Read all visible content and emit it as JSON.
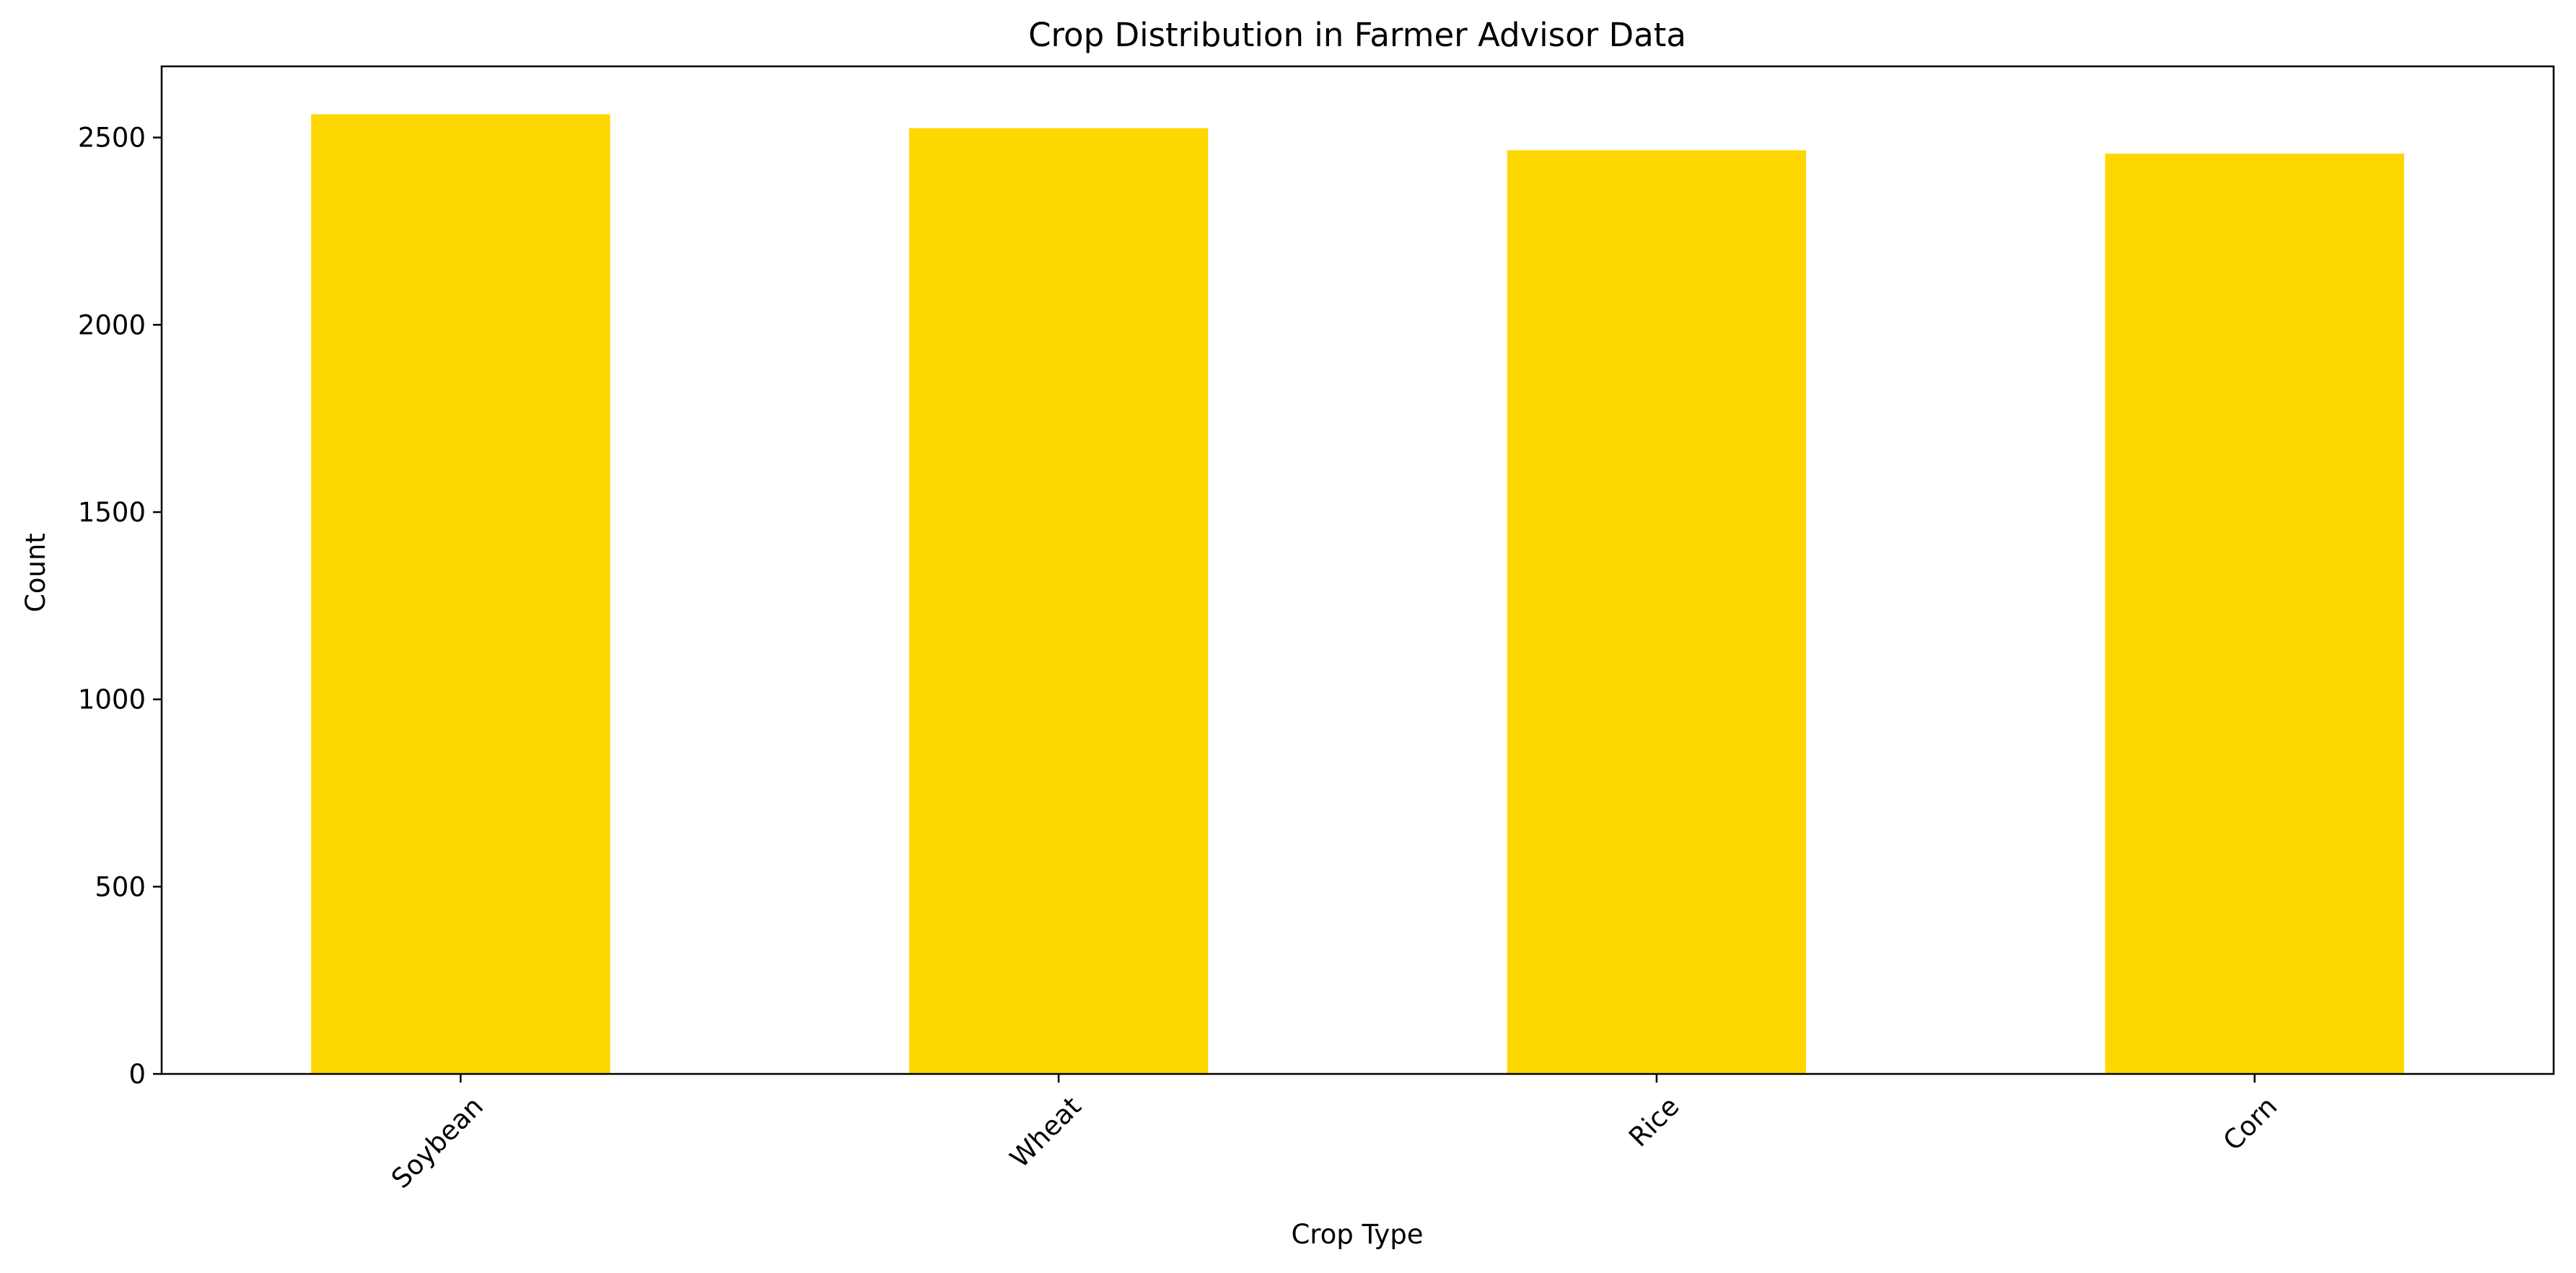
{
  "chart_data": {
    "type": "bar",
    "title": "Crop Distribution in Farmer Advisor Data",
    "xlabel": "Crop Type",
    "ylabel": "Count",
    "categories": [
      "Soybean",
      "Wheat",
      "Rice",
      "Corn"
    ],
    "values": [
      2562,
      2525,
      2466,
      2457
    ],
    "ylim": [
      0,
      2690
    ],
    "yticks": [
      0,
      500,
      1000,
      1500,
      2000,
      2500
    ],
    "bar_color": "#ffd700",
    "grid": false,
    "legend": "none"
  }
}
